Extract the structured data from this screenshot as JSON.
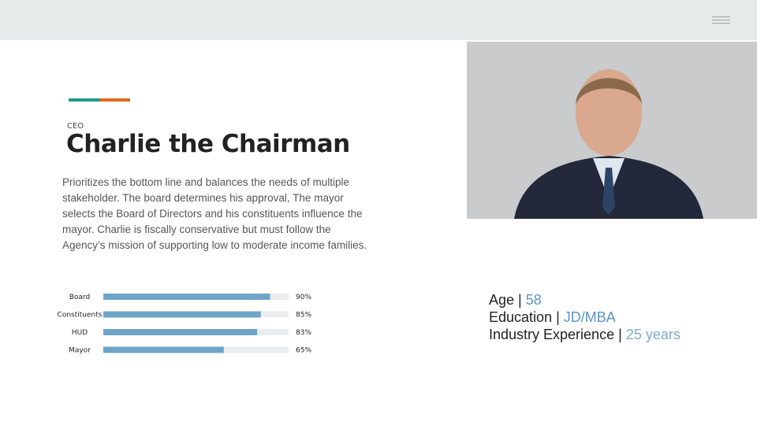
{
  "header": {},
  "profile": {
    "role": "CEO",
    "name": "Charlie the Chairman",
    "description": "Prioritizes the bottom line and balances the needs of multiple stakeholder. The board determines  his approval,  The mayor selects the Board of Directors and his constituents influence the mayor.  Charlie is  fiscally conservative but must follow the Agency’s mission of supporting low to moderate income families."
  },
  "chart_data": {
    "type": "bar",
    "orientation": "horizontal",
    "categories": [
      "Board",
      "Constituents",
      "HUD",
      "Mayor"
    ],
    "values": [
      90,
      85,
      83,
      65
    ],
    "value_labels": [
      "90%",
      "85%",
      "83%",
      "65%"
    ],
    "xlim": [
      0,
      100
    ],
    "color": "#6fa4c9",
    "track_color": "#e9edef"
  },
  "attributes": {
    "separator": "|",
    "items": [
      {
        "label": "Age",
        "value": "58"
      },
      {
        "label": "Education",
        "value": "JD/MBA"
      },
      {
        "label": "Industry Experience",
        "value": "25 years"
      }
    ]
  }
}
